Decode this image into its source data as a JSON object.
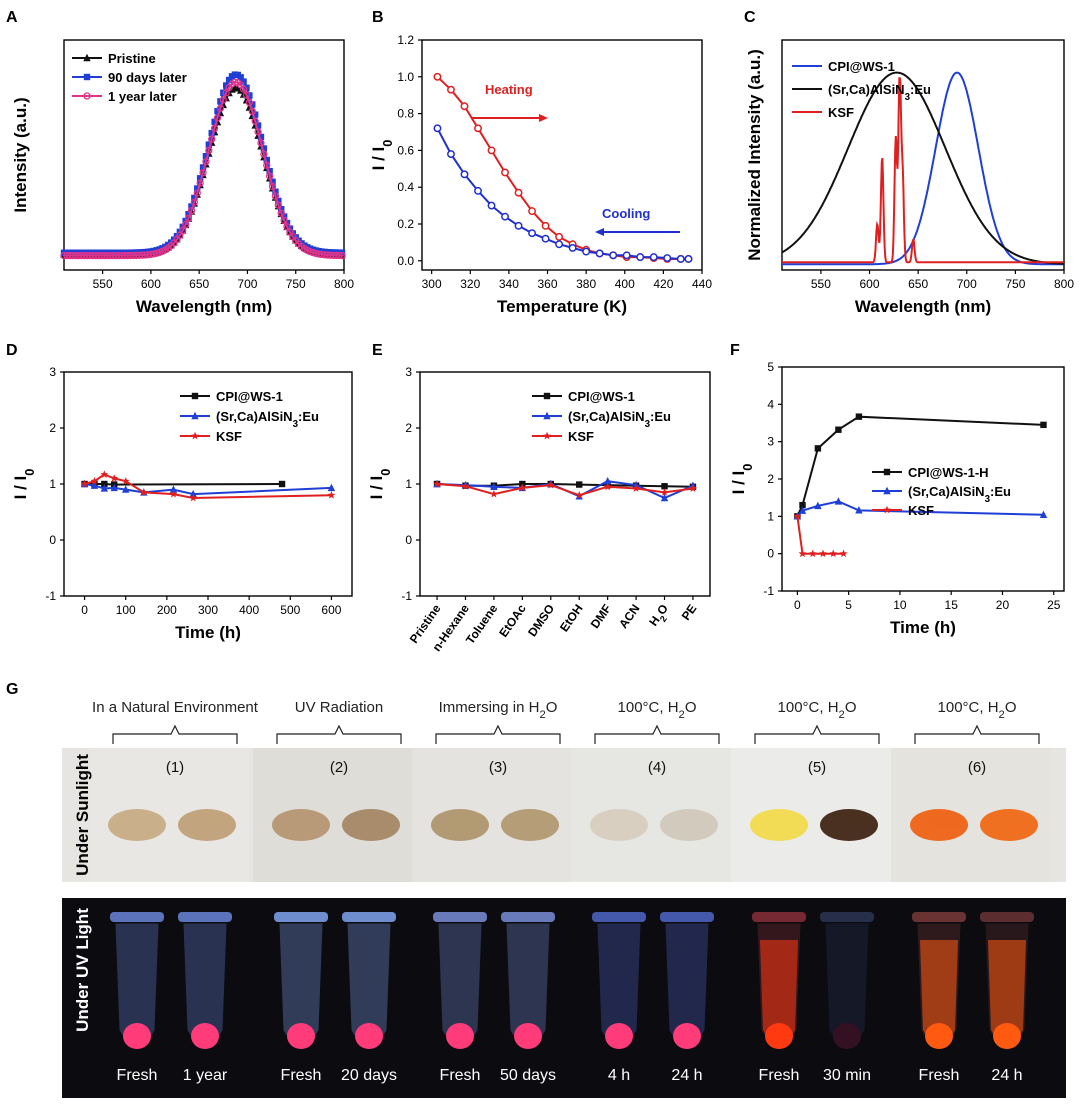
{
  "panels": {
    "A": {
      "letter": "A",
      "chart_data": {
        "type": "line",
        "xlabel": "Wavelength (nm)",
        "ylabel": "Intensity (a.u.)",
        "xlim": [
          510,
          800
        ],
        "ylim": [
          0,
          1.2
        ],
        "xticks": [
          550,
          600,
          650,
          700,
          750,
          800
        ],
        "yticks": [],
        "center": 688,
        "width": 28,
        "series": [
          {
            "name": "Pristine",
            "color": "#111111",
            "peak": 0.95,
            "base": 0.08,
            "marker": "triangle"
          },
          {
            "name": "90 days later",
            "color": "#1f3fd6",
            "peak": 1.02,
            "base": 0.09,
            "marker": "square"
          },
          {
            "name": "1 year later",
            "color": "#e0338a",
            "peak": 0.98,
            "base": 0.075,
            "marker": "circle"
          }
        ]
      }
    },
    "B": {
      "letter": "B",
      "chart_data": {
        "type": "line",
        "xlabel": "Temperature (K)",
        "ylabel": "I / I0",
        "xlim": [
          295,
          440
        ],
        "ylim": [
          -0.05,
          1.2
        ],
        "xticks": [
          300,
          320,
          340,
          360,
          380,
          400,
          420,
          440
        ],
        "yticks": [
          0.0,
          0.2,
          0.4,
          0.6,
          0.8,
          1.0,
          1.2
        ],
        "annotations": [
          {
            "text": "Heating",
            "color": "#e02020"
          },
          {
            "text": "Cooling",
            "color": "#2030d0"
          }
        ],
        "series": [
          {
            "name": "Heating",
            "color": "#e02020",
            "x": [
              303,
              310,
              317,
              324,
              331,
              338,
              345,
              352,
              359,
              366,
              373,
              380,
              387,
              394,
              401,
              408,
              415,
              422,
              429,
              433
            ],
            "y": [
              1.0,
              0.93,
              0.84,
              0.72,
              0.6,
              0.48,
              0.37,
              0.27,
              0.19,
              0.13,
              0.09,
              0.06,
              0.04,
              0.03,
              0.02,
              0.02,
              0.015,
              0.01,
              0.01,
              0.01
            ]
          },
          {
            "name": "Cooling",
            "color": "#2030d0",
            "x": [
              303,
              310,
              317,
              324,
              331,
              338,
              345,
              352,
              359,
              366,
              373,
              380,
              387,
              394,
              401,
              408,
              415,
              422,
              429,
              433
            ],
            "y": [
              0.72,
              0.58,
              0.47,
              0.38,
              0.3,
              0.24,
              0.19,
              0.15,
              0.12,
              0.09,
              0.07,
              0.05,
              0.04,
              0.03,
              0.03,
              0.02,
              0.02,
              0.015,
              0.01,
              0.01
            ]
          }
        ]
      }
    },
    "C": {
      "letter": "C",
      "chart_data": {
        "type": "line",
        "xlabel": "Wavelength (nm)",
        "ylabel": "Normalized Intensity (a.u.)",
        "xlim": [
          510,
          800
        ],
        "ylim": [
          0,
          1.2
        ],
        "xticks": [
          550,
          600,
          650,
          700,
          750,
          800
        ],
        "series": [
          {
            "name": "CPI@WS-1",
            "color": "#1f3fd6",
            "center": 690,
            "width": 22,
            "peak": 1.0,
            "base": 0.0
          },
          {
            "name": "(Sr,Ca)AlSiN3:Eu",
            "color": "#111111",
            "center": 628,
            "width": 50,
            "peak": 1.0,
            "base": 0.0
          },
          {
            "name": "KSF",
            "color": "#e02020",
            "peaks": [
              [
                608,
                0.2
              ],
              [
                613,
                0.55
              ],
              [
                627,
                0.65
              ],
              [
                631,
                1.0
              ],
              [
                634,
                0.45
              ],
              [
                645,
                0.12
              ]
            ],
            "base": 0.04
          }
        ]
      }
    },
    "D": {
      "letter": "D",
      "chart_data": {
        "type": "line",
        "xlabel": "Time (h)",
        "ylabel": "I / I0",
        "xlim": [
          -50,
          650
        ],
        "ylim": [
          -1,
          3
        ],
        "xticks": [
          0,
          100,
          200,
          300,
          400,
          500,
          600
        ],
        "yticks": [
          -1,
          0,
          1,
          2,
          3
        ],
        "series": [
          {
            "name": "CPI@WS-1",
            "color": "#111111",
            "marker": "square",
            "x": [
              0,
              24,
              48,
              72,
              480
            ],
            "y": [
              1.0,
              1.0,
              1.0,
              0.99,
              1.0
            ]
          },
          {
            "name": "(Sr,Ca)AlSiN3:Eu",
            "color": "#1f3fd6",
            "marker": "triangle",
            "x": [
              0,
              24,
              48,
              72,
              100,
              144,
              216,
              264,
              600
            ],
            "y": [
              1.0,
              0.97,
              0.92,
              0.93,
              0.9,
              0.85,
              0.9,
              0.82,
              0.93
            ]
          },
          {
            "name": "KSF",
            "color": "#e02020",
            "marker": "star",
            "x": [
              0,
              24,
              48,
              72,
              100,
              144,
              216,
              264,
              600
            ],
            "y": [
              1.0,
              1.05,
              1.17,
              1.1,
              1.05,
              0.85,
              0.82,
              0.75,
              0.8
            ]
          }
        ]
      }
    },
    "E": {
      "letter": "E",
      "chart_data": {
        "type": "line",
        "xlabel": "",
        "ylabel": "I / I0",
        "ylim": [
          -1,
          3
        ],
        "yticks": [
          -1,
          0,
          1,
          2,
          3
        ],
        "categories": [
          "Pristine",
          "n-Hexane",
          "Toluene",
          "EtOAc",
          "DMSO",
          "EtOH",
          "DMF",
          "ACN",
          "H2O",
          "PE"
        ],
        "series": [
          {
            "name": "CPI@WS-1",
            "color": "#111111",
            "marker": "square",
            "values": [
              1.0,
              0.97,
              0.97,
              1.0,
              1.0,
              0.99,
              0.98,
              0.97,
              0.96,
              0.95
            ]
          },
          {
            "name": "(Sr,Ca)AlSiN3:Eu",
            "color": "#1f3fd6",
            "marker": "triangle",
            "values": [
              1.0,
              0.98,
              0.95,
              0.93,
              1.0,
              0.78,
              1.05,
              0.98,
              0.75,
              0.97
            ]
          },
          {
            "name": "KSF",
            "color": "#e02020",
            "marker": "star",
            "values": [
              1.0,
              0.96,
              0.82,
              0.93,
              0.98,
              0.8,
              0.95,
              0.92,
              0.85,
              0.92
            ]
          }
        ]
      }
    },
    "F": {
      "letter": "F",
      "chart_data": {
        "type": "line",
        "xlabel": "Time (h)",
        "ylabel": "I / I0",
        "xlim": [
          -1.5,
          26
        ],
        "ylim": [
          -1,
          5
        ],
        "xticks": [
          0,
          5,
          10,
          15,
          20,
          25
        ],
        "yticks": [
          -1,
          0,
          1,
          2,
          3,
          4,
          5
        ],
        "series": [
          {
            "name": "CPI@WS-1-H",
            "color": "#111111",
            "marker": "square",
            "x": [
              0,
              0.5,
              2,
              4,
              6,
              24
            ],
            "y": [
              1.0,
              1.3,
              2.82,
              3.32,
              3.67,
              3.45
            ]
          },
          {
            "name": "(Sr,Ca)AlSiN3:Eu",
            "color": "#1f3fd6",
            "marker": "triangle",
            "x": [
              0,
              0.5,
              2,
              4,
              6,
              24
            ],
            "y": [
              1.0,
              1.15,
              1.28,
              1.4,
              1.16,
              1.04
            ]
          },
          {
            "name": "KSF",
            "color": "#e02020",
            "marker": "star",
            "x": [
              0,
              0.5,
              1.5,
              2.5,
              3.5,
              4.5
            ],
            "y": [
              1.0,
              0.0,
              0.0,
              0.0,
              0.0,
              0.0
            ]
          }
        ]
      }
    }
  },
  "panel_g": {
    "letter": "G",
    "conditions": [
      {
        "title_pre": "In a Natural Environment",
        "sub": "",
        "title_post": "",
        "number": "(1)"
      },
      {
        "title_pre": "UV Radiation",
        "sub": "",
        "title_post": "",
        "number": "(2)"
      },
      {
        "title_pre": "Immersing in H",
        "sub": "2",
        "title_post": "O",
        "number": "(3)"
      },
      {
        "title_pre": "100°C, H",
        "sub": "2",
        "title_post": "O",
        "number": "(4)"
      },
      {
        "title_pre": "100°C, H",
        "sub": "2",
        "title_post": "O",
        "number": "(5)"
      },
      {
        "title_pre": "100°C, H",
        "sub": "2",
        "title_post": "O",
        "number": "(6)"
      }
    ],
    "row_labels": {
      "sunlight": "Under Sunlight",
      "uv": "Under UV Light"
    },
    "time_labels": [
      "Fresh",
      "1 year",
      "Fresh",
      "20 days",
      "Fresh",
      "50 days",
      "4 h",
      "24 h",
      "Fresh",
      "30 min",
      "Fresh",
      "24 h"
    ],
    "powder_colors": [
      "#c9b08a",
      "#c2a57e",
      "#b89a78",
      "#a88c6c",
      "#b29a74",
      "#b59d78",
      "#d8cfc0",
      "#d2cbbd",
      "#f2dc55",
      "#4a3020",
      "#ee6a20",
      "#f07022"
    ],
    "glow_colors": [
      "#ff3b7a",
      "#ff3b7a",
      "#ff3b7a",
      "#ff3b7a",
      "#ff3b7a",
      "#ff3b7a",
      "#ff3b7a",
      "#ff3b7a",
      "#ff3a10",
      "#331122",
      "#ff5a10",
      "#ff5a10"
    ]
  }
}
